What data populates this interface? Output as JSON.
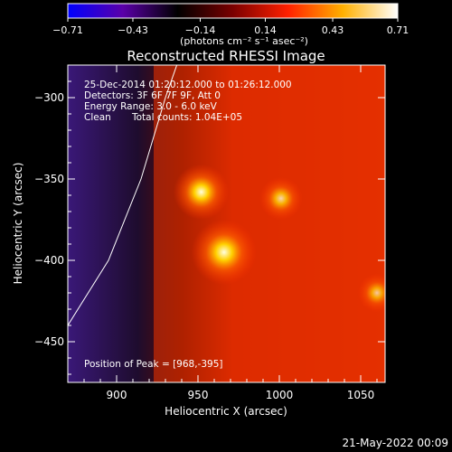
{
  "chart_data": {
    "type": "heatmap",
    "title": "Reconstructed RHESSI Image",
    "xlabel": "Heliocentric X (arcsec)",
    "ylabel": "Heliocentric Y (arcsec)",
    "xlim": [
      870,
      1065
    ],
    "ylim": [
      -475,
      -280
    ],
    "x_ticks": [
      900,
      950,
      1000,
      1050
    ],
    "x_tick_labels": [
      "900",
      "950",
      "1000",
      "1050"
    ],
    "y_ticks": [
      -300,
      -350,
      -400,
      -450
    ],
    "y_tick_labels": [
      "−300",
      "−350",
      "−400",
      "−450"
    ],
    "colorbar": {
      "min": -0.71,
      "max": 0.71,
      "tick_values": [
        -0.71,
        -0.43,
        -0.14,
        0.14,
        0.43,
        0.71
      ],
      "tick_labels": [
        "−0.71",
        "−0.43",
        "−0.14",
        "0.14",
        "0.43",
        "0.71"
      ],
      "units_label": "(photons cm⁻² s⁻¹ asec⁻²)",
      "colormap": [
        "#0000ff",
        "#5a00a8",
        "#000000",
        "#7a0000",
        "#ff2000",
        "#ffb000",
        "#ffffff"
      ]
    },
    "sources": [
      {
        "x": 966,
        "y": -395,
        "peak": 0.71
      },
      {
        "x": 952,
        "y": -358,
        "peak": 0.55
      },
      {
        "x": 1001,
        "y": -362,
        "peak": 0.35
      },
      {
        "x": 1060,
        "y": -420,
        "peak": 0.28
      }
    ],
    "background_level": 0.28,
    "limb_curve": [
      [
        870,
        -440
      ],
      [
        895,
        -400
      ],
      [
        915,
        -350
      ],
      [
        930,
        -300
      ],
      [
        937,
        -280
      ]
    ],
    "annotations": {
      "time_range": "25-Dec-2014 01:20:12.000 to 01:26:12.000",
      "detectors": "Detectors: 3F 6F 7F 9F, Att 0",
      "energy_range": "Energy Range: 3.0 - 6.0 keV",
      "algorithm": "Clean",
      "total_counts": "Total counts: 1.04E+05",
      "peak_position": "Position of Peak = [968,-395]"
    },
    "footer_date": "21-May-2022 00:09"
  }
}
